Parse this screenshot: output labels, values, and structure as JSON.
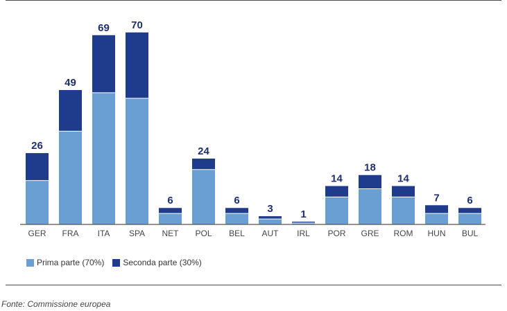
{
  "chart_data": {
    "type": "bar",
    "stacked": true,
    "categories": [
      "GER",
      "FRA",
      "ITA",
      "SPA",
      "NET",
      "POL",
      "BEL",
      "AUT",
      "IRL",
      "POR",
      "GRE",
      "ROM",
      "HUN",
      "BUL"
    ],
    "totals": [
      26,
      49,
      69,
      70,
      6,
      24,
      6,
      3,
      1,
      14,
      18,
      14,
      7,
      6
    ],
    "series": [
      {
        "name": "Prima parte (70%)",
        "color": "#6a9fd4",
        "values": [
          16,
          34,
          48,
          46,
          4,
          20,
          4,
          2,
          0.5,
          10,
          13,
          10,
          4,
          4
        ]
      },
      {
        "name": "Seconda parte (30%)",
        "color": "#1f3b8c",
        "values": [
          10,
          15,
          21,
          24,
          2,
          4,
          2,
          1,
          0.5,
          4,
          5,
          4,
          3,
          2
        ]
      }
    ],
    "ylim": [
      0,
      75
    ],
    "legend_position": "bottom-left",
    "grid": false
  },
  "legend": {
    "items": [
      {
        "label": "Prima parte (70%)",
        "color": "#6a9fd4"
      },
      {
        "label": "Seconda parte (30%)",
        "color": "#1f3b8c"
      }
    ]
  },
  "source": "Fonte: Commissione europea"
}
